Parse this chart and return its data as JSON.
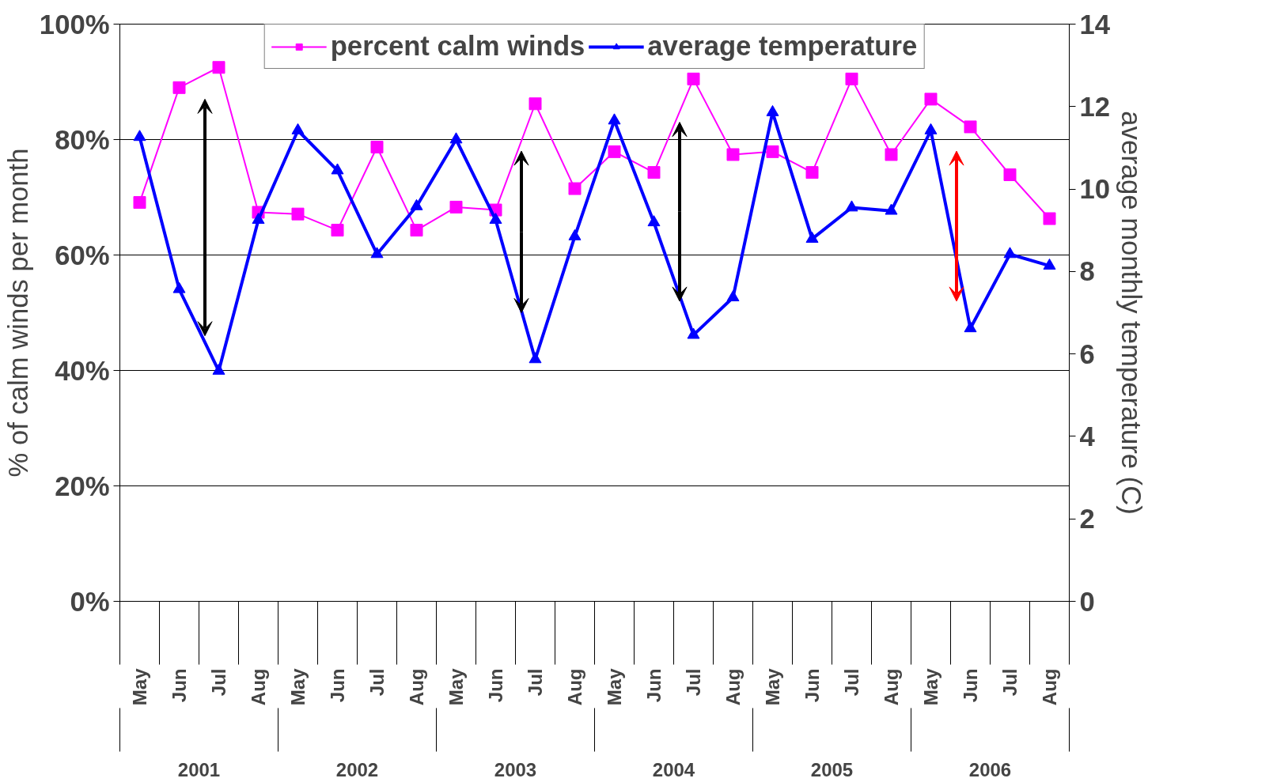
{
  "chart_data": {
    "type": "line",
    "categories": [
      "May",
      "Jun",
      "Jul",
      "Aug",
      "May",
      "Jun",
      "Jul",
      "Aug",
      "May",
      "Jun",
      "Jul",
      "Aug",
      "May",
      "Jun",
      "Jul",
      "Aug",
      "May",
      "Jun",
      "Jul",
      "Aug",
      "May",
      "Jun",
      "Jul",
      "Aug"
    ],
    "annotations": [
      "2001",
      "2002",
      "2003",
      "2004",
      "2005",
      "2006"
    ],
    "ylabel": "% of calm winds per month",
    "y2label": "average monthly temperature (C)",
    "ylim": [
      0,
      100
    ],
    "yticks": [
      {
        "value": 0,
        "label": "0%"
      },
      {
        "value": 20,
        "label": "20%"
      },
      {
        "value": 40,
        "label": "40%"
      },
      {
        "value": 60,
        "label": "60%"
      },
      {
        "value": 80,
        "label": "80%"
      },
      {
        "value": 100,
        "label": "100%"
      }
    ],
    "y2lim": [
      0,
      14
    ],
    "y2ticks": [
      0,
      2,
      4,
      6,
      8,
      10,
      12,
      14
    ],
    "grid": "y",
    "legend": "top",
    "series": [
      {
        "name": "percent calm winds",
        "color": "#ff00ff",
        "marker": "square",
        "values": [
          69.1,
          89.0,
          92.5,
          67.4,
          67.1,
          64.3,
          78.7,
          64.3,
          68.3,
          67.8,
          86.2,
          71.5,
          77.9,
          74.3,
          90.5,
          77.4,
          77.9,
          74.3,
          90.5,
          77.4,
          87.0,
          82.2,
          73.9,
          66.3
        ]
      },
      {
        "name": "average temperature",
        "color": "#0000ff",
        "marker": "triangle",
        "axis": "y2",
        "values": [
          11.26,
          7.57,
          5.59,
          9.25,
          11.42,
          10.45,
          8.42,
          9.58,
          11.2,
          9.25,
          5.87,
          8.85,
          11.66,
          9.19,
          6.46,
          7.37,
          11.86,
          8.79,
          9.55,
          9.47,
          11.42,
          6.62,
          8.42,
          8.14
        ]
      }
    ]
  }
}
